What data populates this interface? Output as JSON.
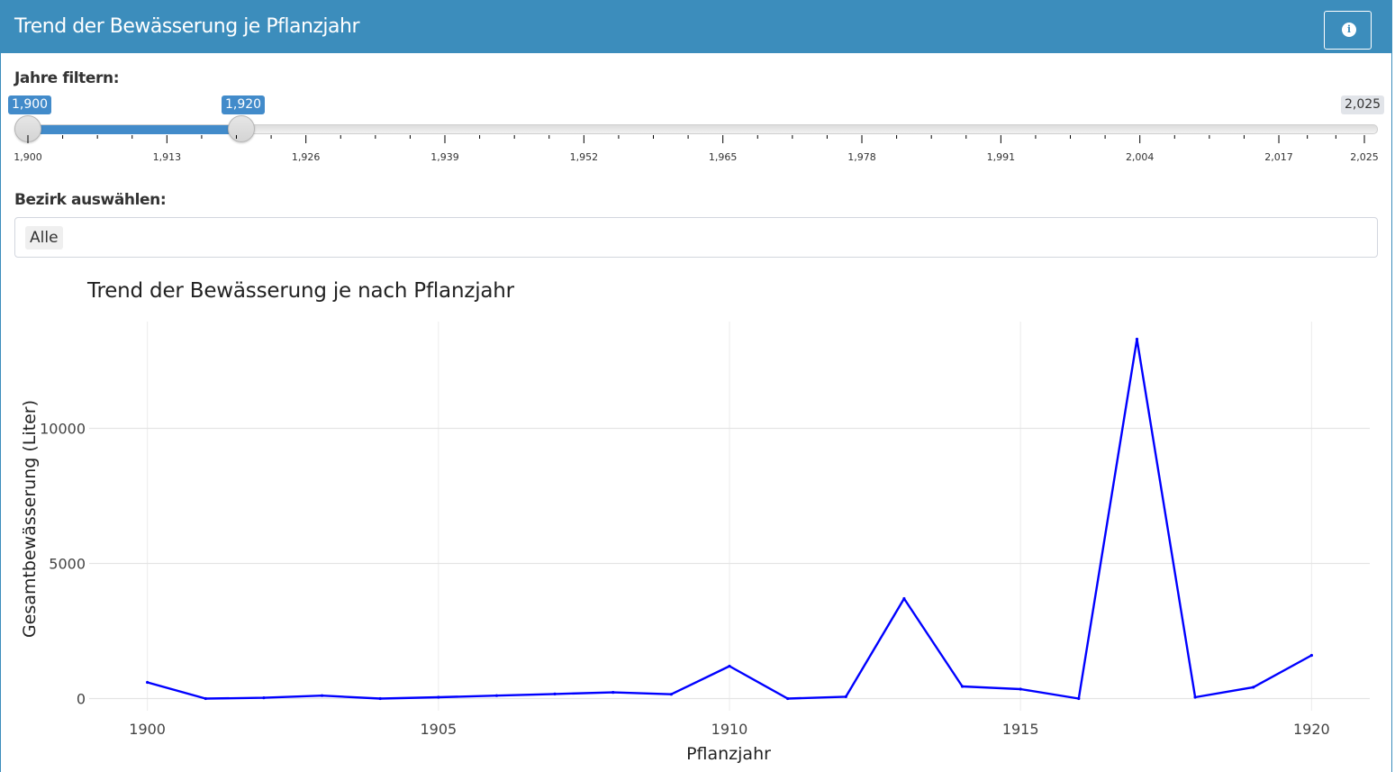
{
  "header": {
    "title": "Trend der Bewässerung je Pflanzjahr",
    "info_icon": "info-circle-icon"
  },
  "year_filter": {
    "label": "Jahre filtern:",
    "from_label": "1,900",
    "to_label": "1,920",
    "max_label": "2,025",
    "from": 1900,
    "to": 1920,
    "min": 1900,
    "max": 2025,
    "grid_labels": [
      "1,900",
      "1,913",
      "1,926",
      "1,939",
      "1,952",
      "1,965",
      "1,978",
      "1,991",
      "2,004",
      "2,017",
      "2,025"
    ],
    "accent_color": "#428bca"
  },
  "district": {
    "label": "Bezirk auswählen:",
    "selected": "Alle"
  },
  "chart_data": {
    "type": "line",
    "title": "Trend der Bewässerung je nach Pflanzjahr",
    "xlabel": "Pflanzjahr",
    "ylabel": "Gesamtbewässerung (Liter)",
    "x": [
      1900,
      1901,
      1902,
      1903,
      1904,
      1905,
      1906,
      1907,
      1908,
      1909,
      1910,
      1911,
      1912,
      1913,
      1914,
      1915,
      1916,
      1917,
      1918,
      1919,
      1920
    ],
    "series": [
      {
        "color": "#0000ff",
        "values": [
          600,
          0,
          30,
          110,
          0,
          50,
          110,
          170,
          230,
          160,
          1200,
          0,
          70,
          3700,
          450,
          350,
          0,
          13300,
          50,
          420,
          1600
        ]
      }
    ],
    "x_ticks": [
      "1900",
      "1905",
      "1910",
      "1915",
      "1920"
    ],
    "y_ticks": [
      "0",
      "5000",
      "10000"
    ],
    "xlim": [
      1899,
      1921
    ],
    "ylim": [
      -450,
      13950
    ],
    "grid": true,
    "legend": "none"
  },
  "colors": {
    "header": "#3c8dbc"
  }
}
